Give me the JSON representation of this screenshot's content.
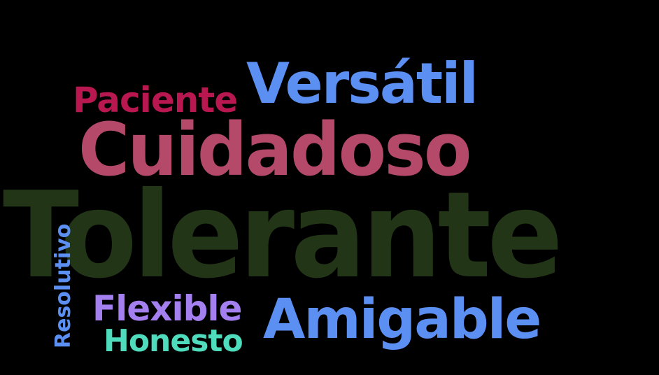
{
  "background_color": "#000000",
  "words": {
    "tolerante": {
      "text": "Tolerante",
      "color": "#233517"
    },
    "cuidadoso": {
      "text": "Cuidadoso",
      "color": "#b5496a"
    },
    "versatil": {
      "text": "Versátil",
      "color": "#5b8ff2"
    },
    "paciente": {
      "text": "Paciente",
      "color": "#b8174f"
    },
    "amigable": {
      "text": "Amigable",
      "color": "#5b8ff2"
    },
    "flexible": {
      "text": "Flexible",
      "color": "#a47ff0"
    },
    "honesto": {
      "text": "Honesto",
      "color": "#4fdcbc"
    },
    "resolutivo": {
      "text": "Resolutivo",
      "color": "#5b8ff2"
    }
  }
}
